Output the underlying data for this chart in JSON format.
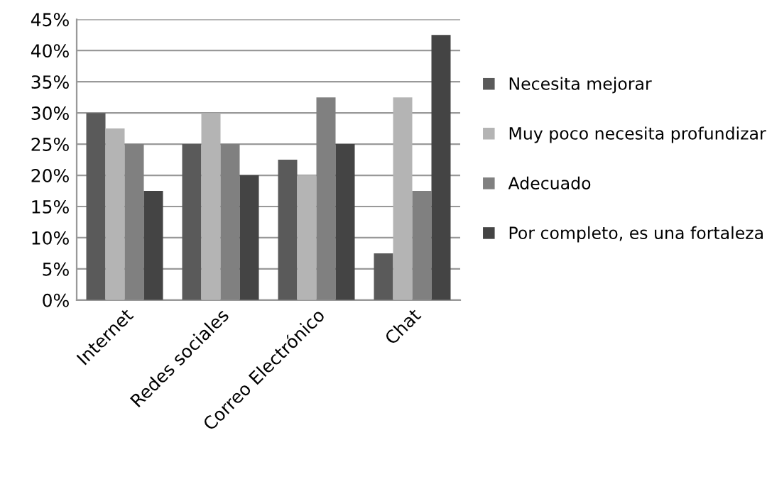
{
  "chart_data": {
    "type": "bar",
    "categories": [
      "Internet",
      "Redes sociales",
      "Correo Electrónico",
      "Chat"
    ],
    "series": [
      {
        "name": "Necesita mejorar",
        "color": "#5a5a5a",
        "values": [
          30,
          25,
          22.5,
          7.5
        ]
      },
      {
        "name": "Muy poco necesita profundizar",
        "color": "#b4b4b4",
        "values": [
          27.5,
          30,
          20,
          32.5
        ]
      },
      {
        "name": "Adecuado",
        "color": "#808080",
        "values": [
          25,
          25,
          32.5,
          17.5
        ]
      },
      {
        "name": "Por completo, es una fortaleza",
        "color": "#444444",
        "values": [
          17.5,
          20,
          25,
          42.5
        ]
      }
    ],
    "ylim": [
      0,
      45
    ],
    "yticks": [
      {
        "value": 0,
        "label": "0%"
      },
      {
        "value": 5,
        "label": "5%"
      },
      {
        "value": 10,
        "label": "10%"
      },
      {
        "value": 15,
        "label": "15%"
      },
      {
        "value": 20,
        "label": "20%"
      },
      {
        "value": 25,
        "label": "25%"
      },
      {
        "value": 30,
        "label": "30%"
      },
      {
        "value": 35,
        "label": "35%"
      },
      {
        "value": 40,
        "label": "40%"
      },
      {
        "value": 45,
        "label": "45%"
      }
    ],
    "grid": "y",
    "legend": "right"
  }
}
